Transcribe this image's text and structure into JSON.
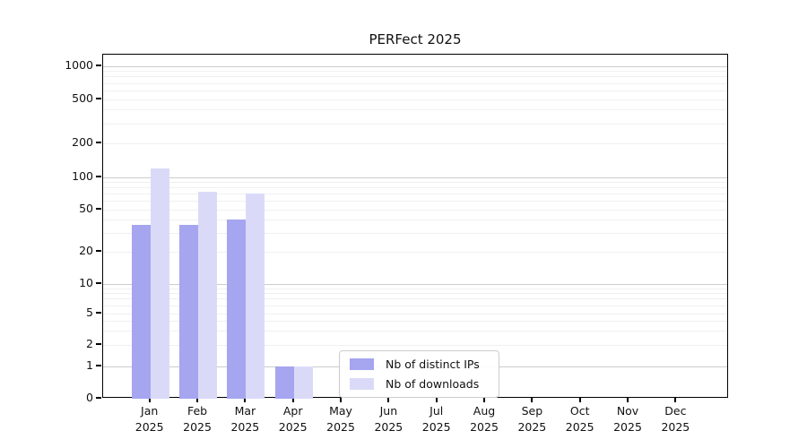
{
  "title": "PERFect 2025",
  "chart_data": {
    "type": "bar",
    "title": "PERFect 2025",
    "categories": [
      "Jan 2025",
      "Feb 2025",
      "Mar 2025",
      "Apr 2025",
      "May 2025",
      "Jun 2025",
      "Jul 2025",
      "Aug 2025",
      "Sep 2025",
      "Oct 2025",
      "Nov 2025",
      "Dec 2025"
    ],
    "series": [
      {
        "name": "Nb of distinct IPs",
        "color": "#a5a5f0",
        "values": [
          36,
          36,
          40,
          1,
          0,
          0,
          0,
          0,
          0,
          0,
          0,
          0
        ]
      },
      {
        "name": "Nb of downloads",
        "color": "#dadaf8",
        "values": [
          120,
          74,
          71,
          1,
          0,
          0,
          0,
          0,
          0,
          0,
          0,
          0
        ]
      }
    ],
    "yticks": [
      0,
      1,
      2,
      5,
      10,
      20,
      50,
      100,
      200,
      500,
      1000
    ],
    "yscale": "symlog",
    "ylim": [
      0,
      1300
    ],
    "xlabel": "",
    "ylabel": "",
    "grid": "horizontal, log minor gridlines, darker major lines at 1/10/100/1000",
    "legend_position": "lower center-left inside plot"
  }
}
